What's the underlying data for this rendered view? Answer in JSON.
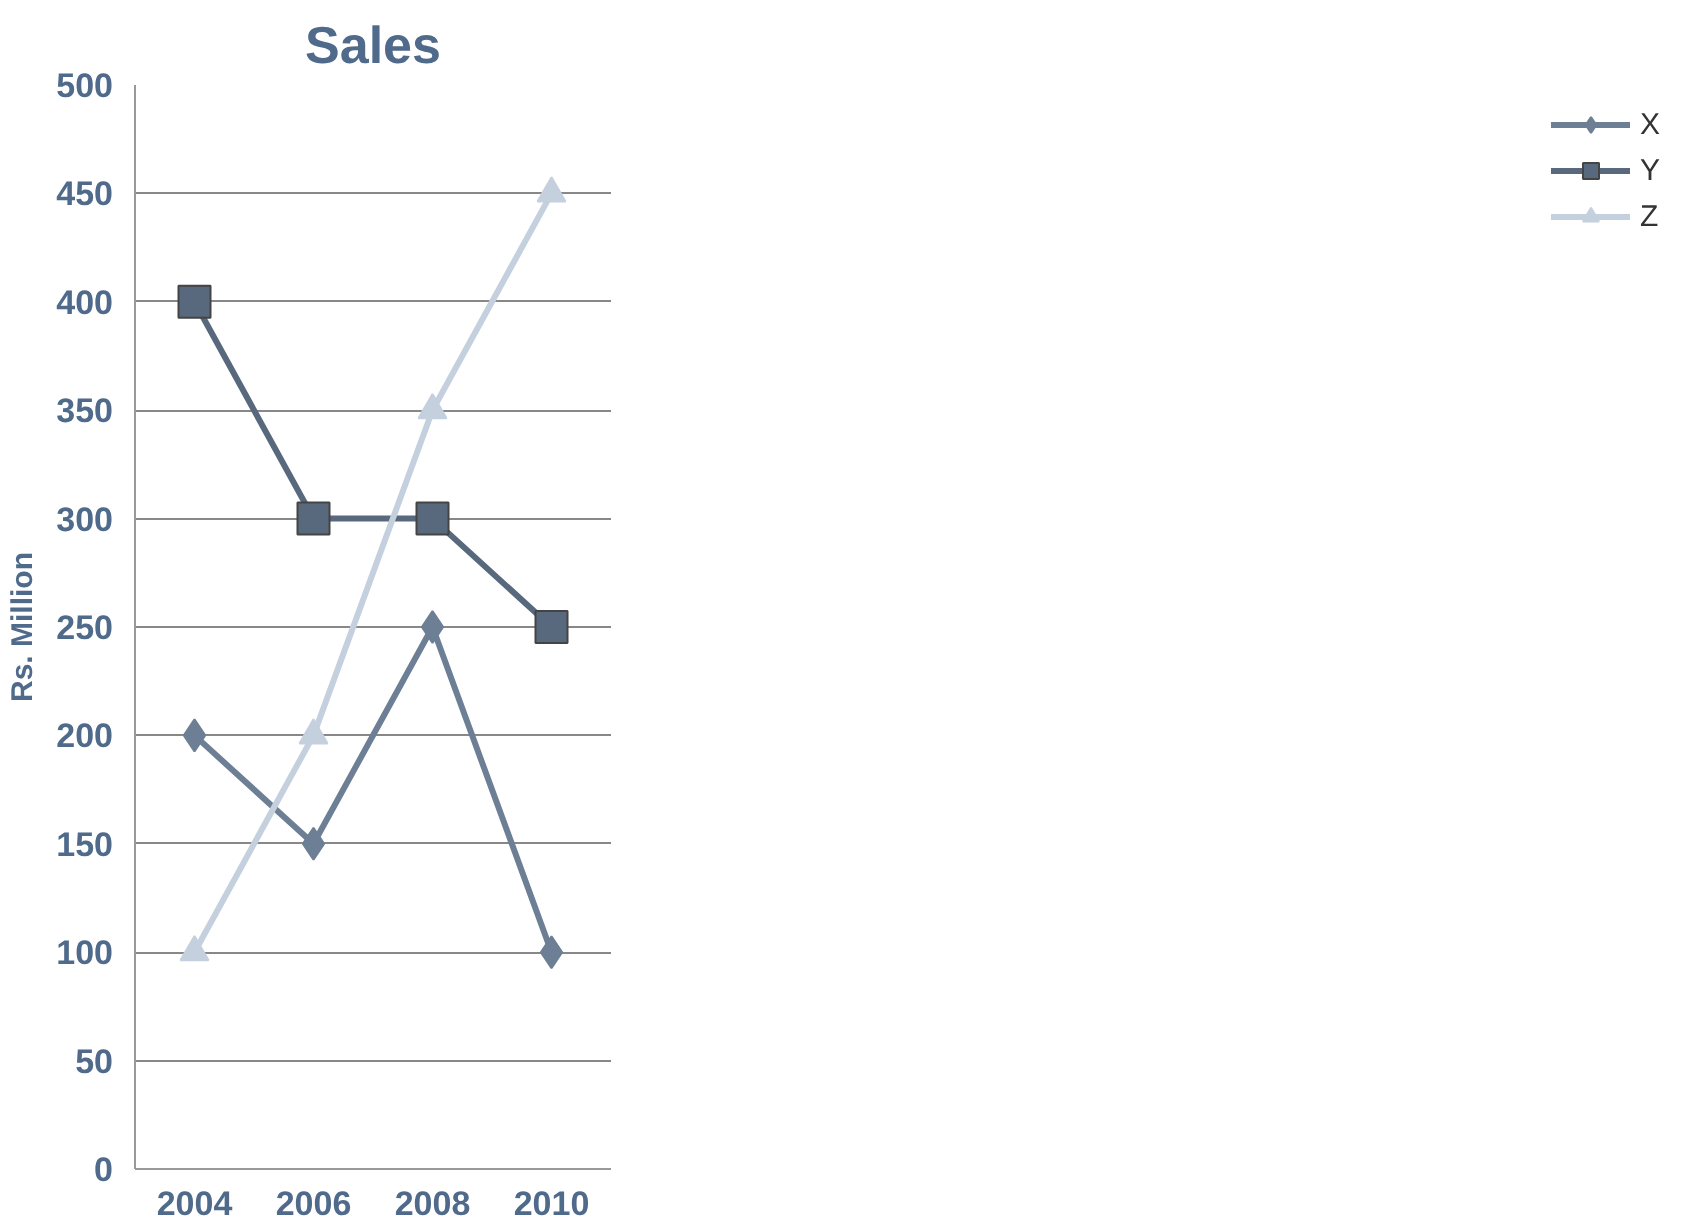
{
  "chart_data": {
    "type": "line",
    "title": "Sales",
    "ylabel": "Rs. Million",
    "categories": [
      "2004",
      "2006",
      "2008",
      "2010"
    ],
    "series": [
      {
        "name": "X",
        "color": "#6d7f94",
        "marker": "diamond",
        "values": [
          200,
          150,
          250,
          100
        ]
      },
      {
        "name": "Y",
        "color": "#58697d",
        "marker": "square",
        "values": [
          400,
          300,
          300,
          250
        ]
      },
      {
        "name": "Z",
        "color": "#c5d0de",
        "marker": "triangle",
        "values": [
          100,
          200,
          350,
          450
        ]
      }
    ],
    "ylim": [
      0,
      500
    ],
    "yticks": [
      0,
      50,
      100,
      150,
      200,
      250,
      300,
      350,
      400,
      450,
      500
    ],
    "grid": "y",
    "legend": "right",
    "line_style": "solid"
  }
}
